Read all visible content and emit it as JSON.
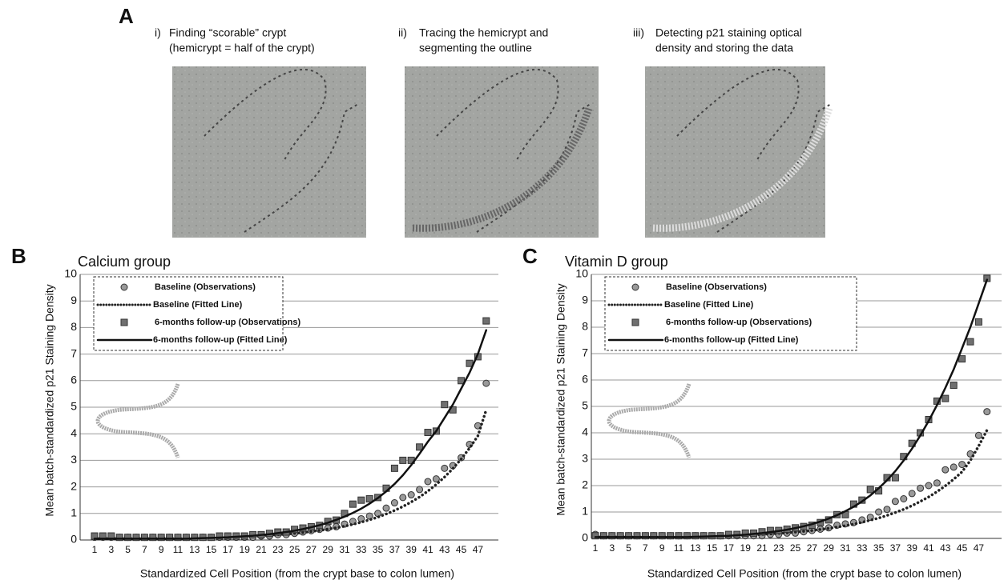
{
  "panel_a": {
    "label": "A",
    "steps": [
      {
        "number": "i)",
        "lines": [
          "Finding “scorable” crypt",
          "(hemicrypt = half of the crypt)"
        ]
      },
      {
        "number": "ii)",
        "lines": [
          "Tracing the hemicrypt and",
          "segmenting the outline"
        ]
      },
      {
        "number": "iii)",
        "lines": [
          "Detecting p21 staining optical",
          "density and storing the data"
        ]
      }
    ]
  },
  "chart_data": [
    {
      "type": "scatter-line",
      "panel": "B",
      "title": "Calcium group",
      "xlabel": "Standardized Cell Position (from the crypt base to colon lumen)",
      "ylabel": "Mean batch-standardized p21 Staining Density",
      "categories": [
        "1",
        null,
        "3",
        null,
        "5",
        null,
        "7",
        null,
        "9",
        null,
        "11",
        null,
        "13",
        null,
        "15",
        null,
        "17",
        null,
        "19",
        null,
        "21",
        null,
        "23",
        null,
        "25",
        null,
        "27",
        null,
        "29",
        null,
        "31",
        null,
        "33",
        null,
        "35",
        null,
        "37",
        null,
        "39",
        null,
        "41",
        null,
        "43",
        null,
        "45",
        null,
        "47",
        null
      ],
      "ylim": [
        0,
        10
      ],
      "yticks": [
        0,
        1,
        2,
        3,
        4,
        5,
        6,
        7,
        8,
        9,
        10
      ],
      "grid": true,
      "legend": "top-left",
      "series": [
        {
          "name": "Baseline (Observations)",
          "color": "#9a9a9a",
          "marker": "circle",
          "values": [
            0.1,
            0.1,
            0.1,
            0.1,
            0.1,
            0.1,
            0.1,
            0.1,
            0.1,
            0.1,
            0.1,
            0.1,
            0.1,
            0.1,
            0.1,
            0.1,
            0.1,
            0.1,
            0.1,
            0.1,
            0.15,
            0.15,
            0.2,
            0.2,
            0.25,
            0.3,
            0.35,
            0.4,
            0.45,
            0.5,
            0.6,
            0.7,
            0.8,
            0.9,
            1.0,
            1.2,
            1.4,
            1.6,
            1.7,
            1.9,
            2.2,
            2.3,
            2.7,
            2.8,
            3.1,
            3.6,
            4.3,
            5.9
          ]
        },
        {
          "name": "Baseline (Fitted Line)",
          "color": "#222222",
          "marker": "dotted",
          "values": [
            0.05,
            0.05,
            0.05,
            0.05,
            0.05,
            0.05,
            0.06,
            0.06,
            0.06,
            0.07,
            0.07,
            0.08,
            0.08,
            0.09,
            0.1,
            0.1,
            0.11,
            0.12,
            0.13,
            0.15,
            0.16,
            0.18,
            0.2,
            0.22,
            0.25,
            0.28,
            0.32,
            0.36,
            0.41,
            0.46,
            0.52,
            0.59,
            0.67,
            0.76,
            0.86,
            0.98,
            1.11,
            1.26,
            1.43,
            1.62,
            1.84,
            2.09,
            2.37,
            2.69,
            3.05,
            3.46,
            3.92,
            4.9
          ]
        },
        {
          "name": "6-months follow-up (Observations)",
          "color": "#707070",
          "marker": "square",
          "values": [
            0.15,
            0.15,
            0.15,
            0.1,
            0.1,
            0.1,
            0.1,
            0.1,
            0.1,
            0.1,
            0.1,
            0.1,
            0.1,
            0.1,
            0.1,
            0.15,
            0.15,
            0.15,
            0.15,
            0.2,
            0.2,
            0.25,
            0.3,
            0.3,
            0.4,
            0.45,
            0.5,
            0.55,
            0.7,
            0.75,
            1.0,
            1.35,
            1.5,
            1.55,
            1.6,
            1.95,
            2.7,
            3.0,
            3.0,
            3.5,
            4.05,
            4.1,
            5.1,
            4.9,
            6.0,
            6.65,
            6.9,
            8.25
          ]
        },
        {
          "name": "6-months follow-up (Fitted Line)",
          "color": "#111111",
          "marker": "line",
          "values": [
            0.05,
            0.05,
            0.05,
            0.05,
            0.05,
            0.05,
            0.05,
            0.05,
            0.05,
            0.05,
            0.05,
            0.05,
            0.06,
            0.07,
            0.08,
            0.09,
            0.1,
            0.12,
            0.14,
            0.16,
            0.19,
            0.22,
            0.26,
            0.3,
            0.35,
            0.41,
            0.48,
            0.56,
            0.65,
            0.76,
            0.88,
            1.02,
            1.18,
            1.37,
            1.58,
            1.83,
            2.11,
            2.44,
            2.82,
            3.25,
            3.7,
            4.1,
            4.6,
            5.1,
            5.7,
            6.3,
            7.0,
            7.9
          ]
        }
      ]
    },
    {
      "type": "scatter-line",
      "panel": "C",
      "title": "Vitamin D group",
      "xlabel": "Standardized Cell Position (from the crypt base to colon lumen)",
      "ylabel": "Mean batch-standardized p21 Staining Density",
      "categories": [
        "1",
        null,
        "3",
        null,
        "5",
        null,
        "7",
        null,
        "9",
        null,
        "11",
        null,
        "13",
        null,
        "15",
        null,
        "17",
        null,
        "19",
        null,
        "21",
        null,
        "23",
        null,
        "25",
        null,
        "27",
        null,
        "29",
        null,
        "31",
        null,
        "33",
        null,
        "35",
        null,
        "37",
        null,
        "39",
        null,
        "41",
        null,
        "43",
        null,
        "45",
        null,
        "47",
        null
      ],
      "ylim": [
        0,
        10
      ],
      "yticks": [
        0,
        1,
        2,
        3,
        4,
        5,
        6,
        7,
        8,
        9,
        10
      ],
      "grid": true,
      "legend": "top-left",
      "series": [
        {
          "name": "Baseline (Observations)",
          "color": "#9a9a9a",
          "marker": "circle",
          "values": [
            0.15,
            0.1,
            0.1,
            0.1,
            0.1,
            0.1,
            0.1,
            0.1,
            0.1,
            0.1,
            0.1,
            0.1,
            0.1,
            0.1,
            0.1,
            0.1,
            0.1,
            0.1,
            0.1,
            0.1,
            0.1,
            0.15,
            0.15,
            0.2,
            0.2,
            0.25,
            0.3,
            0.35,
            0.4,
            0.5,
            0.55,
            0.6,
            0.7,
            0.8,
            1.0,
            1.1,
            1.4,
            1.5,
            1.7,
            1.9,
            2.0,
            2.1,
            2.6,
            2.7,
            2.8,
            3.2,
            3.9,
            4.8
          ]
        },
        {
          "name": "Baseline (Fitted Line)",
          "color": "#222222",
          "marker": "dotted",
          "values": [
            0.05,
            0.05,
            0.05,
            0.05,
            0.05,
            0.05,
            0.05,
            0.05,
            0.05,
            0.05,
            0.06,
            0.06,
            0.07,
            0.07,
            0.08,
            0.09,
            0.1,
            0.11,
            0.12,
            0.13,
            0.15,
            0.17,
            0.19,
            0.21,
            0.24,
            0.27,
            0.3,
            0.34,
            0.38,
            0.43,
            0.48,
            0.54,
            0.61,
            0.69,
            0.77,
            0.87,
            0.98,
            1.1,
            1.24,
            1.4,
            1.57,
            1.77,
            1.99,
            2.24,
            2.52,
            2.95,
            3.5,
            4.1
          ]
        },
        {
          "name": "6-months follow-up (Observations)",
          "color": "#707070",
          "marker": "square",
          "values": [
            0.1,
            0.1,
            0.1,
            0.1,
            0.1,
            0.1,
            0.1,
            0.1,
            0.1,
            0.1,
            0.1,
            0.1,
            0.1,
            0.1,
            0.1,
            0.1,
            0.15,
            0.15,
            0.2,
            0.2,
            0.25,
            0.3,
            0.3,
            0.35,
            0.4,
            0.45,
            0.5,
            0.6,
            0.7,
            0.9,
            0.9,
            1.3,
            1.45,
            1.85,
            1.8,
            2.3,
            2.3,
            3.1,
            3.6,
            4.0,
            4.5,
            5.2,
            5.3,
            5.8,
            6.8,
            7.45,
            8.2,
            9.85
          ]
        },
        {
          "name": "6-months follow-up (Fitted Line)",
          "color": "#111111",
          "marker": "line",
          "values": [
            0.05,
            0.05,
            0.05,
            0.05,
            0.05,
            0.05,
            0.05,
            0.05,
            0.05,
            0.05,
            0.05,
            0.05,
            0.06,
            0.07,
            0.08,
            0.09,
            0.1,
            0.12,
            0.14,
            0.17,
            0.2,
            0.24,
            0.28,
            0.33,
            0.39,
            0.46,
            0.54,
            0.64,
            0.75,
            0.88,
            1.03,
            1.2,
            1.4,
            1.63,
            1.9,
            2.2,
            2.55,
            2.95,
            3.4,
            3.9,
            4.45,
            5.05,
            5.7,
            6.4,
            7.2,
            8.0,
            8.9,
            9.8
          ]
        }
      ]
    }
  ]
}
